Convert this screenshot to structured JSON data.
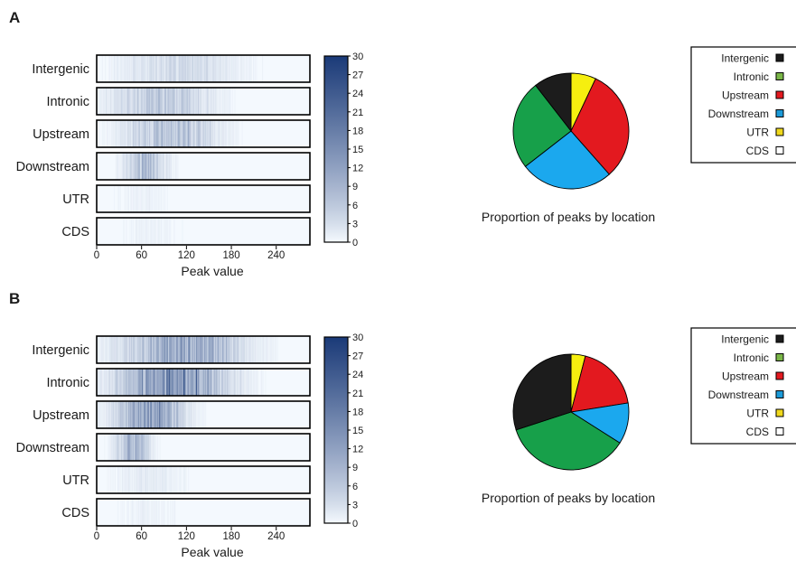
{
  "panels": [
    {
      "letter": "A",
      "heatmap": {
        "rows": [
          "Intergenic",
          "Intronic",
          "Upstream",
          "Downstream",
          "UTR",
          "CDS"
        ],
        "xlabel": "Peak value",
        "xticks": [
          0,
          60,
          120,
          180,
          240
        ],
        "colorbar_ticks": [
          0,
          3,
          6,
          9,
          12,
          15,
          18,
          21,
          24,
          27,
          30
        ]
      },
      "pie_caption": "Proportion of peaks by location",
      "legend": [
        {
          "label": "Intergenic",
          "color": "#1c1c1c"
        },
        {
          "label": "Intronic",
          "color": "#7ab648"
        },
        {
          "label": "Upstream",
          "color": "#e3191f"
        },
        {
          "label": "Downstream",
          "color": "#1b9ad8"
        },
        {
          "label": "UTR",
          "color": "#efd81c"
        },
        {
          "label": "CDS",
          "color": "#ffffff"
        }
      ]
    },
    {
      "letter": "B",
      "heatmap": {
        "rows": [
          "Intergenic",
          "Intronic",
          "Upstream",
          "Downstream",
          "UTR",
          "CDS"
        ],
        "xlabel": "Peak value",
        "xticks": [
          0,
          60,
          120,
          180,
          240
        ],
        "colorbar_ticks": [
          0,
          3,
          6,
          9,
          12,
          15,
          18,
          21,
          24,
          27,
          30
        ]
      },
      "pie_caption": "Proportion of peaks by location",
      "legend": [
        {
          "label": "Intergenic",
          "color": "#1c1c1c"
        },
        {
          "label": "Intronic",
          "color": "#7ab648"
        },
        {
          "label": "Upstream",
          "color": "#e3191f"
        },
        {
          "label": "Downstream",
          "color": "#1b9ad8"
        },
        {
          "label": "UTR",
          "color": "#efd81c"
        },
        {
          "label": "CDS",
          "color": "#ffffff"
        }
      ]
    }
  ],
  "chart_data": [
    {
      "type": "heatmap",
      "panel": "A",
      "xlabel": "Peak value",
      "x_range": [
        0,
        285
      ],
      "xticks": [
        0,
        60,
        120,
        180,
        240
      ],
      "rows": [
        "Intergenic",
        "Intronic",
        "Upstream",
        "Downstream",
        "UTR",
        "CDS"
      ],
      "value_range": [
        0,
        30
      ],
      "colormap": [
        "#f4f9fe",
        "#1a3a78"
      ],
      "row_profiles": [
        {
          "row": "Intergenic",
          "peak_center": 110,
          "spread": 70,
          "max_intensity": 5
        },
        {
          "row": "Intronic",
          "peak_center": 85,
          "spread": 60,
          "max_intensity": 9
        },
        {
          "row": "Upstream",
          "peak_center": 100,
          "spread": 55,
          "max_intensity": 10
        },
        {
          "row": "Downstream",
          "peak_center": 65,
          "spread": 25,
          "max_intensity": 11
        },
        {
          "row": "UTR",
          "peak_center": 60,
          "spread": 40,
          "max_intensity": 1
        },
        {
          "row": "CDS",
          "peak_center": 70,
          "spread": 40,
          "max_intensity": 1
        }
      ]
    },
    {
      "type": "pie",
      "panel": "A",
      "title": "Proportion of peaks by location",
      "labels": [
        "Intergenic",
        "Intronic",
        "Upstream",
        "Downstream",
        "UTR",
        "CDS"
      ],
      "values": [
        10.5,
        25.0,
        31.5,
        26.0,
        7.0,
        0.0
      ],
      "order": [
        "UTR",
        "Upstream",
        "Downstream",
        "Intronic",
        "Intergenic"
      ],
      "colors": {
        "Intergenic": "#1c1c1c",
        "Intronic": "#17a04a",
        "Upstream": "#e3191f",
        "Downstream": "#1ba8ee",
        "UTR": "#f6ef0f",
        "CDS": "#ffffff"
      }
    },
    {
      "type": "heatmap",
      "panel": "B",
      "xlabel": "Peak value",
      "x_range": [
        0,
        285
      ],
      "xticks": [
        0,
        60,
        120,
        180,
        240
      ],
      "rows": [
        "Intergenic",
        "Intronic",
        "Upstream",
        "Downstream",
        "UTR",
        "CDS"
      ],
      "value_range": [
        0,
        30
      ],
      "colormap": [
        "#f4f9fe",
        "#1a3a78"
      ],
      "row_profiles": [
        {
          "row": "Intergenic",
          "peak_center": 115,
          "spread": 70,
          "max_intensity": 17
        },
        {
          "row": "Intronic",
          "peak_center": 100,
          "spread": 65,
          "max_intensity": 21
        },
        {
          "row": "Upstream",
          "peak_center": 70,
          "spread": 40,
          "max_intensity": 19
        },
        {
          "row": "Downstream",
          "peak_center": 48,
          "spread": 20,
          "max_intensity": 14
        },
        {
          "row": "UTR",
          "peak_center": 70,
          "spread": 45,
          "max_intensity": 2
        },
        {
          "row": "CDS",
          "peak_center": 70,
          "spread": 45,
          "max_intensity": 1
        }
      ]
    },
    {
      "type": "pie",
      "panel": "B",
      "title": "Proportion of peaks by location",
      "labels": [
        "Intergenic",
        "Intronic",
        "Upstream",
        "Downstream",
        "UTR",
        "CDS"
      ],
      "values": [
        30.0,
        36.0,
        18.5,
        11.5,
        4.0,
        0.0
      ],
      "order": [
        "UTR",
        "Upstream",
        "Downstream",
        "Intronic",
        "Intergenic"
      ],
      "colors": {
        "Intergenic": "#1c1c1c",
        "Intronic": "#17a04a",
        "Upstream": "#e3191f",
        "Downstream": "#1ba8ee",
        "UTR": "#f6ef0f",
        "CDS": "#ffffff"
      }
    }
  ]
}
